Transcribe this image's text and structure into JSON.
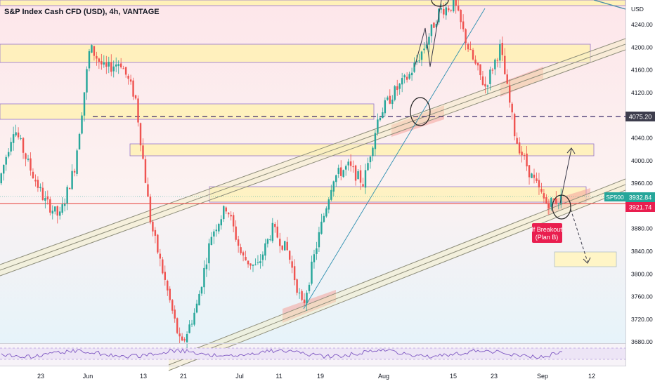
{
  "header": {
    "title": "S&P Index Cash CFD (USD), 4h, VANTAGE"
  },
  "price_axis": {
    "currency": "USD",
    "ticks": [
      "4240.00",
      "4200.00",
      "4160.00",
      "4120.00",
      "4080.00",
      "4040.00",
      "4000.00",
      "3960.00",
      "3920.00",
      "3880.00",
      "3840.00",
      "3800.00",
      "3760.00",
      "3720.00",
      "3680.00"
    ],
    "marker_dashed": "4075.20",
    "marker_symbol": "SP500",
    "marker_last": "3932.84",
    "marker_red": "3921.74"
  },
  "time_axis": {
    "labels": [
      "23",
      "Jun",
      "13",
      "21",
      "Jul",
      "11",
      "19",
      "Aug",
      "15",
      "23",
      "Sep",
      "12"
    ]
  },
  "annotation": {
    "line1": "If Breakout",
    "line2": "(Plan B)"
  },
  "colors": {
    "up": "#26a69a",
    "down": "#ef5350",
    "zone_fill": "#fff3b0",
    "zone_border": "#7e57c2",
    "bg_top": "#fde8ec",
    "bg_bottom": "#eaf5fb",
    "label_red": "#e91e4f"
  },
  "chart_data": {
    "type": "candlestick",
    "title": "S&P Index Cash CFD (USD), 4h, VANTAGE",
    "ylim": [
      3665,
      4275
    ],
    "y_scale": "linear",
    "grid": false,
    "key_levels": [
      4075.2,
      3932.84,
      3921.74
    ],
    "resistance_zones": [
      [
        4175,
        4205
      ],
      [
        4075,
        4090
      ],
      [
        4008,
        4020
      ],
      [
        3930,
        3955
      ]
    ],
    "price_path": [
      {
        "date": "May 15",
        "price": 3960
      },
      {
        "date": "May 17",
        "price": 4060
      },
      {
        "date": "May 20",
        "price": 3990
      },
      {
        "date": "May 22",
        "price": 3930
      },
      {
        "date": "May 23",
        "price": 3900
      },
      {
        "date": "May 27",
        "price": 3990
      },
      {
        "date": "May 31",
        "price": 4200
      },
      {
        "date": "Jun 3",
        "price": 4160
      },
      {
        "date": "Jun 7",
        "price": 4175
      },
      {
        "date": "Jun 10",
        "price": 4110
      },
      {
        "date": "Jun 13",
        "price": 3890
      },
      {
        "date": "Jun 15",
        "price": 3780
      },
      {
        "date": "Jun 17",
        "price": 3670
      },
      {
        "date": "Jun 21",
        "price": 3740
      },
      {
        "date": "Jun 24",
        "price": 3870
      },
      {
        "date": "Jun 28",
        "price": 3920
      },
      {
        "date": "Jul 1",
        "price": 3830
      },
      {
        "date": "Jul 5",
        "price": 3810
      },
      {
        "date": "Jul 8",
        "price": 3880
      },
      {
        "date": "Jul 12",
        "price": 3840
      },
      {
        "date": "Jul 15",
        "price": 3740
      },
      {
        "date": "Jul 18",
        "price": 3860
      },
      {
        "date": "Jul 21",
        "price": 3970
      },
      {
        "date": "Jul 25",
        "price": 3990
      },
      {
        "date": "Jul 28",
        "price": 3960
      },
      {
        "date": "Aug 1",
        "price": 4080
      },
      {
        "date": "Aug 4",
        "price": 4120
      },
      {
        "date": "Aug 8",
        "price": 4150
      },
      {
        "date": "Aug 11",
        "price": 4200
      },
      {
        "date": "Aug 15",
        "price": 4265
      },
      {
        "date": "Aug 18",
        "price": 4275
      },
      {
        "date": "Aug 22",
        "price": 4190
      },
      {
        "date": "Aug 25",
        "price": 4130
      },
      {
        "date": "Aug 27",
        "price": 4200
      },
      {
        "date": "Aug 29",
        "price": 4040
      },
      {
        "date": "Sep 1",
        "price": 3975
      },
      {
        "date": "Sep 2",
        "price": 3925
      },
      {
        "date": "Sep 5",
        "price": 3932.84
      }
    ],
    "rsi_panel": true
  }
}
